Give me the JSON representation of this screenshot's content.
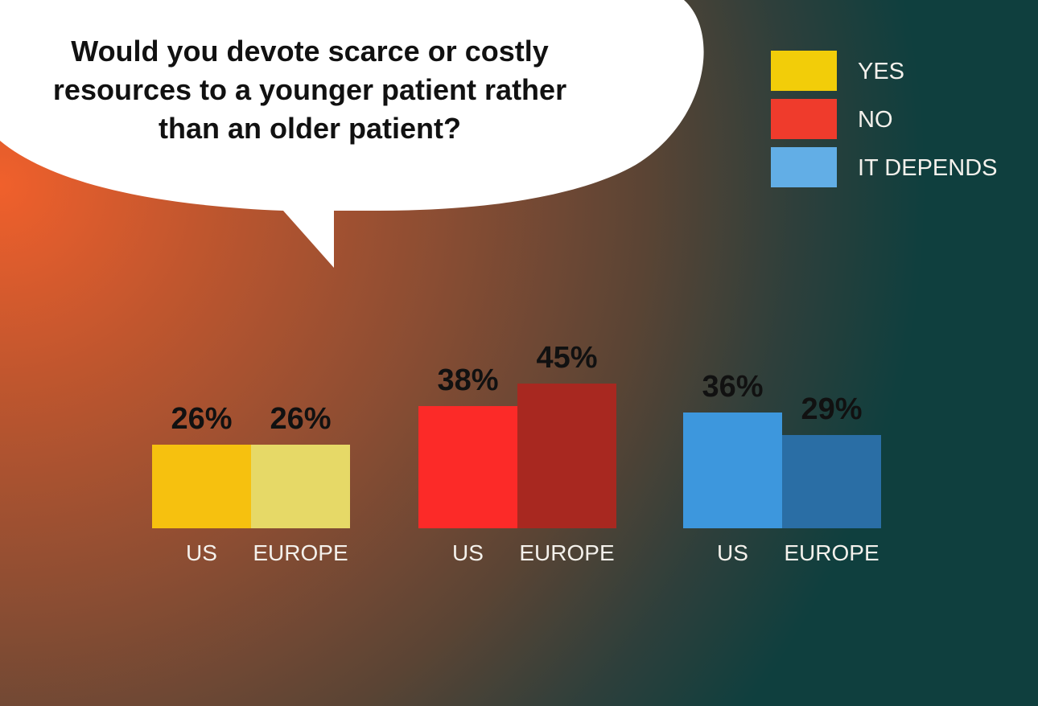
{
  "question": "Would you devote scarce or costly resources to a younger patient rather than an older patient?",
  "colors": {
    "yes": "#f6c10f",
    "no": "#ef3b2c",
    "depends": "#62aee6",
    "bubble": "#ffffff"
  },
  "legend": [
    {
      "label": "YES",
      "color": "#f2cd09"
    },
    {
      "label": "NO",
      "color": "#ef3b2c"
    },
    {
      "label": "IT DEPENDS",
      "color": "#62aee6"
    }
  ],
  "chart_data": {
    "type": "bar",
    "title": "Would you devote scarce or costly resources to a younger patient rather than an older patient?",
    "groups": [
      {
        "name": "YES",
        "bars": [
          {
            "category": "US",
            "value": 26,
            "label": "26%",
            "color": "#f6c10f"
          },
          {
            "category": "EUROPE",
            "value": 26,
            "label": "26%",
            "color": "#e6d967"
          }
        ]
      },
      {
        "name": "NO",
        "bars": [
          {
            "category": "US",
            "value": 38,
            "label": "38%",
            "color": "#fc2a28"
          },
          {
            "category": "EUROPE",
            "value": 45,
            "label": "45%",
            "color": "#a82820"
          }
        ]
      },
      {
        "name": "IT DEPENDS",
        "bars": [
          {
            "category": "US",
            "value": 36,
            "label": "36%",
            "color": "#3d97dd"
          },
          {
            "category": "EUROPE",
            "value": 29,
            "label": "29%",
            "color": "#2a6ea5"
          }
        ]
      }
    ],
    "value_unit": "%",
    "grid": false,
    "legend_position": "top-right"
  }
}
